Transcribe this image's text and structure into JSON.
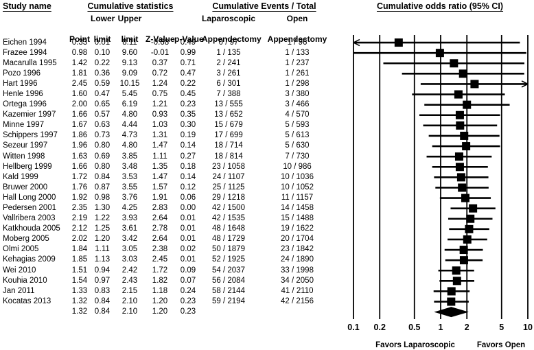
{
  "header": {
    "study_name": "Study name",
    "cumulative_statistics": "Cumulative statistics",
    "cumulative_events": "Cumulative Events / Total",
    "odds_ratio": "Cumulative odds ratio (95% CI)",
    "col_point": "Point",
    "col_lower_top": "Lower",
    "col_lower_bot": "limit",
    "col_upper_top": "Upper",
    "col_upper_bot": "limit",
    "col_z": "Z-Value",
    "col_p": "p-Value",
    "col_lap_top": "Laparoscopic",
    "col_lap_bot": "Appendectomy",
    "col_open_top": "Open",
    "col_open_bot": "Appendectomy"
  },
  "colors": {
    "ink": "#000000",
    "background": "#ffffff"
  },
  "chart_data": {
    "type": "forest",
    "scale": "log10",
    "xlim": [
      0.1,
      10
    ],
    "ticks": [
      0.1,
      0.2,
      0.5,
      1,
      2,
      5,
      10
    ],
    "tick_labels": [
      "0.1",
      "0.2",
      "0.5",
      "1",
      "2",
      "5",
      "10"
    ],
    "favors_left": "Favors Laparoscopic",
    "favors_right": "Favors Open",
    "studies": [
      {
        "name": "Eichen 1994",
        "point": 0.33,
        "lower": 0.01,
        "upper": 8.11,
        "z": -0.68,
        "p": 0.49,
        "lap": "0 / 97",
        "open": "1 / 96"
      },
      {
        "name": "Frazee 1994",
        "point": 0.98,
        "lower": 0.1,
        "upper": 9.6,
        "z": -0.01,
        "p": 0.99,
        "lap": "1 / 135",
        "open": "1 / 133"
      },
      {
        "name": "Macarulla 1995",
        "point": 1.42,
        "lower": 0.22,
        "upper": 9.13,
        "z": 0.37,
        "p": 0.71,
        "lap": "2 / 241",
        "open": "1 / 237"
      },
      {
        "name": "Pozo 1996",
        "point": 1.81,
        "lower": 0.36,
        "upper": 9.09,
        "z": 0.72,
        "p": 0.47,
        "lap": "3 / 261",
        "open": "1 / 261"
      },
      {
        "name": "Hart 1996",
        "point": 2.45,
        "lower": 0.59,
        "upper": 10.15,
        "z": 1.24,
        "p": 0.22,
        "lap": "6 / 301",
        "open": "1 / 298"
      },
      {
        "name": "Henle 1996",
        "point": 1.6,
        "lower": 0.47,
        "upper": 5.45,
        "z": 0.75,
        "p": 0.45,
        "lap": "7 / 388",
        "open": "3 / 380"
      },
      {
        "name": "Ortega 1996",
        "point": 2.0,
        "lower": 0.65,
        "upper": 6.19,
        "z": 1.21,
        "p": 0.23,
        "lap": "13 / 555",
        "open": "3 / 466"
      },
      {
        "name": "Kazemier 1997",
        "point": 1.66,
        "lower": 0.57,
        "upper": 4.8,
        "z": 0.93,
        "p": 0.35,
        "lap": "13 / 652",
        "open": "4 / 570"
      },
      {
        "name": "Minne 1997",
        "point": 1.67,
        "lower": 0.63,
        "upper": 4.44,
        "z": 1.03,
        "p": 0.3,
        "lap": "15 / 679",
        "open": "5 / 593"
      },
      {
        "name": "Schippers 1997",
        "point": 1.86,
        "lower": 0.73,
        "upper": 4.73,
        "z": 1.31,
        "p": 0.19,
        "lap": "17 / 699",
        "open": "5 / 613"
      },
      {
        "name": "Sezeur 1997",
        "point": 1.96,
        "lower": 0.8,
        "upper": 4.8,
        "z": 1.47,
        "p": 0.14,
        "lap": "18 / 714",
        "open": "5 / 630"
      },
      {
        "name": "Witten 1998",
        "point": 1.63,
        "lower": 0.69,
        "upper": 3.85,
        "z": 1.11,
        "p": 0.27,
        "lap": "18 / 814",
        "open": "7 / 730"
      },
      {
        "name": "Hellberg 1999",
        "point": 1.66,
        "lower": 0.8,
        "upper": 3.48,
        "z": 1.35,
        "p": 0.18,
        "lap": "23 / 1058",
        "open": "10 / 986"
      },
      {
        "name": "Kald 1999",
        "point": 1.72,
        "lower": 0.84,
        "upper": 3.53,
        "z": 1.47,
        "p": 0.14,
        "lap": "24 / 1107",
        "open": "10 / 1036"
      },
      {
        "name": "Bruwer 2000",
        "point": 1.76,
        "lower": 0.87,
        "upper": 3.55,
        "z": 1.57,
        "p": 0.12,
        "lap": "25 / 1125",
        "open": "10 / 1052"
      },
      {
        "name": "Hall Long 2000",
        "point": 1.92,
        "lower": 0.98,
        "upper": 3.76,
        "z": 1.91,
        "p": 0.06,
        "lap": "29 / 1218",
        "open": "11 / 1157"
      },
      {
        "name": "Pedersen 2001",
        "point": 2.35,
        "lower": 1.3,
        "upper": 4.25,
        "z": 2.83,
        "p": 0.0,
        "lap": "42 / 1500",
        "open": "14 / 1458"
      },
      {
        "name": "Vallribera 2003",
        "point": 2.19,
        "lower": 1.22,
        "upper": 3.93,
        "z": 2.64,
        "p": 0.01,
        "lap": "42 / 1535",
        "open": "15 / 1488"
      },
      {
        "name": "Katkhouda 2005",
        "point": 2.12,
        "lower": 1.25,
        "upper": 3.61,
        "z": 2.78,
        "p": 0.01,
        "lap": "48 / 1648",
        "open": "19 / 1622"
      },
      {
        "name": "Moberg 2005",
        "point": 2.02,
        "lower": 1.2,
        "upper": 3.42,
        "z": 2.64,
        "p": 0.01,
        "lap": "48 / 1729",
        "open": "20 / 1704"
      },
      {
        "name": "Olmi 2005",
        "point": 1.84,
        "lower": 1.11,
        "upper": 3.05,
        "z": 2.38,
        "p": 0.02,
        "lap": "50 / 1879",
        "open": "23 / 1842"
      },
      {
        "name": "Kehagias 2009",
        "point": 1.85,
        "lower": 1.13,
        "upper": 3.03,
        "z": 2.45,
        "p": 0.01,
        "lap": "52 / 1925",
        "open": "24 / 1890"
      },
      {
        "name": "Wei 2010",
        "point": 1.51,
        "lower": 0.94,
        "upper": 2.42,
        "z": 1.72,
        "p": 0.09,
        "lap": "54 / 2037",
        "open": "33 / 1998"
      },
      {
        "name": "Kouhia 2010",
        "point": 1.54,
        "lower": 0.97,
        "upper": 2.43,
        "z": 1.82,
        "p": 0.07,
        "lap": "56 / 2084",
        "open": "34 / 2050"
      },
      {
        "name": "Jan 2011",
        "point": 1.33,
        "lower": 0.83,
        "upper": 2.15,
        "z": 1.18,
        "p": 0.24,
        "lap": "58 / 2144",
        "open": "41 / 2110"
      },
      {
        "name": "Kocatas 2013",
        "point": 1.32,
        "lower": 0.84,
        "upper": 2.1,
        "z": 1.2,
        "p": 0.23,
        "lap": "59 / 2194",
        "open": "42 / 2156"
      }
    ],
    "summary": {
      "name": "",
      "point": 1.32,
      "lower": 0.84,
      "upper": 2.1,
      "z": 1.2,
      "p": 0.23,
      "lap": "",
      "open": ""
    }
  }
}
